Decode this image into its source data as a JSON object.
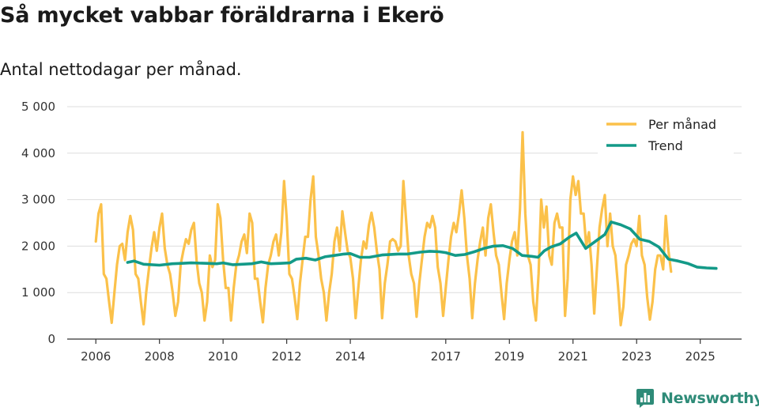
{
  "brand": {
    "name": "Newsworthy",
    "icon": "bar-chart-badge-icon",
    "color": "#2e8b78"
  },
  "colors": {
    "per_manad": "#fbc14a",
    "trend": "#139a88",
    "grid": "#dddddd",
    "axis": "#333333"
  },
  "chart_data": {
    "type": "line",
    "title": "Så mycket vabbar föräldrarna i Ekerö",
    "subtitle": "Antal nettodagar per månad.",
    "xlabel": "",
    "ylabel": "",
    "xlim": [
      2005.1,
      2026.3
    ],
    "ylim": [
      0,
      5000
    ],
    "y_ticks": [
      0,
      1000,
      2000,
      3000,
      4000,
      5000
    ],
    "y_tick_labels": [
      "0",
      "1 000",
      "2 000",
      "3 000",
      "4 000",
      "5 000"
    ],
    "x_ticks": [
      2006,
      2008,
      2010,
      2012,
      2014,
      2017,
      2019,
      2021,
      2023,
      2025
    ],
    "x_tick_labels": [
      "2006",
      "2008",
      "2010",
      "2012",
      "2014",
      "2017",
      "2019",
      "2021",
      "2023",
      "2025"
    ],
    "grid": "horizontal",
    "legend": "top-right",
    "series": [
      {
        "name": "Per månad",
        "color": "#fbc14a",
        "x_start": 2006.0,
        "step": 0.0833333,
        "values": [
          2100,
          2700,
          2900,
          1400,
          1300,
          800,
          350,
          1000,
          1600,
          2000,
          2050,
          1700,
          2300,
          2650,
          2350,
          1400,
          1300,
          800,
          320,
          1000,
          1500,
          1950,
          2300,
          1900,
          2400,
          2700,
          1950,
          1600,
          1400,
          1000,
          500,
          800,
          1600,
          1900,
          2150,
          2050,
          2350,
          2500,
          1700,
          1200,
          1000,
          400,
          800,
          1800,
          1550,
          1700,
          2900,
          2600,
          1700,
          1100,
          1100,
          400,
          1100,
          1600,
          1800,
          2100,
          2250,
          1850,
          2700,
          2500,
          1300,
          1300,
          800,
          360,
          1100,
          1600,
          1800,
          2100,
          2250,
          1800,
          2300,
          3400,
          2600,
          1400,
          1300,
          900,
          430,
          1200,
          1700,
          2200,
          2200,
          3000,
          3500,
          2200,
          1800,
          1300,
          1000,
          400,
          1000,
          1400,
          2100,
          2400,
          1900,
          2750,
          2300,
          1900,
          1750,
          1300,
          450,
          1100,
          1700,
          2100,
          1950,
          2450,
          2720,
          2400,
          1900,
          1500,
          450,
          1200,
          1600,
          2100,
          2150,
          2100,
          1900,
          2000,
          3400,
          2600,
          1800,
          1400,
          1200,
          480,
          1200,
          1700,
          2200,
          2500,
          2400,
          2650,
          2400,
          1550,
          1200,
          500,
          1100,
          1700,
          2200,
          2500,
          2300,
          2700,
          3200,
          2600,
          1800,
          1300,
          450,
          1200,
          1700,
          2100,
          2400,
          1800,
          2600,
          2900,
          2300,
          1800,
          1600,
          1000,
          430,
          1200,
          1700,
          2100,
          2300,
          1800,
          2800,
          4450,
          2700,
          1800,
          1600,
          800,
          400,
          1400,
          3000,
          2400,
          2850,
          1800,
          1600,
          2500,
          2700,
          2400,
          2400,
          500,
          1300,
          3000,
          3500,
          3100,
          3400,
          2700,
          2700,
          2000,
          2300,
          1600,
          550,
          1500,
          2400,
          2800,
          3100,
          2000,
          2700,
          2000,
          1800,
          1100,
          300,
          700,
          1600,
          1800,
          2050,
          2150,
          2000,
          2650,
          1800,
          1600,
          900,
          420,
          800,
          1500,
          1800,
          1800,
          1500,
          2650,
          1900,
          1450
        ]
      },
      {
        "name": "Trend",
        "color": "#139a88",
        "x": [
          2007.0,
          2007.2,
          2007.5,
          2008.0,
          2008.4,
          2008.7,
          2009.0,
          2009.5,
          2009.8,
          2010.0,
          2010.3,
          2010.6,
          2010.9,
          2011.2,
          2011.5,
          2011.8,
          2012.1,
          2012.3,
          2012.6,
          2012.9,
          2013.2,
          2013.5,
          2013.8,
          2014.0,
          2014.3,
          2014.6,
          2015.0,
          2015.5,
          2015.8,
          2016.2,
          2016.5,
          2016.8,
          2017.0,
          2017.3,
          2017.6,
          2017.9,
          2018.2,
          2018.5,
          2018.8,
          2019.1,
          2019.4,
          2019.7,
          2019.9,
          2020.1,
          2020.3,
          2020.6,
          2020.9,
          2021.1,
          2021.4,
          2021.7,
          2022.0,
          2022.2,
          2022.5,
          2022.8,
          2023.1,
          2023.4,
          2023.7,
          2024.0,
          2024.3,
          2024.6,
          2024.9,
          2025.2,
          2025.5
        ],
        "values": [
          1650,
          1680,
          1610,
          1590,
          1620,
          1630,
          1640,
          1630,
          1620,
          1640,
          1600,
          1610,
          1620,
          1660,
          1620,
          1630,
          1640,
          1720,
          1740,
          1700,
          1770,
          1800,
          1830,
          1840,
          1760,
          1760,
          1810,
          1830,
          1830,
          1870,
          1890,
          1880,
          1860,
          1800,
          1820,
          1880,
          1950,
          2000,
          2010,
          1950,
          1800,
          1780,
          1760,
          1900,
          1980,
          2050,
          2200,
          2280,
          1950,
          2100,
          2250,
          2520,
          2460,
          2370,
          2150,
          2100,
          1980,
          1720,
          1680,
          1630,
          1550,
          1530,
          1520
        ]
      }
    ]
  }
}
